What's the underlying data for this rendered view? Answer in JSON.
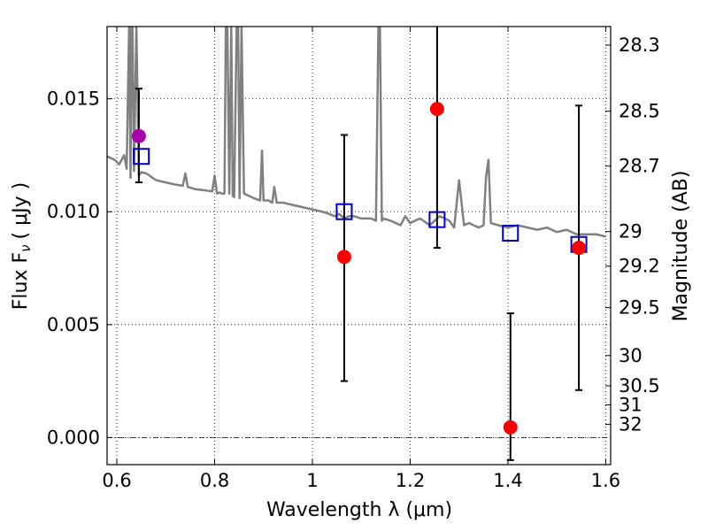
{
  "chart_data": {
    "type": "scatter",
    "title": "",
    "xlabel": "Wavelength  λ (μm)",
    "ylabel": "Flux  F",
    "ylabel_sub": "ν",
    "ylabel_unit": "( μJy )",
    "y2label": "Magnitude (AB)",
    "xlim": [
      0.58,
      1.61
    ],
    "ylim": [
      -0.0012,
      0.0182
    ],
    "x_ticks": [
      0.6,
      0.8,
      1.0,
      1.2,
      1.4,
      1.6
    ],
    "x_tick_labels": [
      "0.6",
      "0.8",
      "1",
      "1.2",
      "1.4",
      "1.6"
    ],
    "y_ticks": [
      0.0,
      0.005,
      0.01,
      0.015
    ],
    "y_tick_labels": [
      "0.000",
      "0.005",
      "0.010",
      "0.015"
    ],
    "y2_ticks": [
      {
        "label": "28.3",
        "flux": 0.01738
      },
      {
        "label": "28.5",
        "flux": 0.01445
      },
      {
        "label": "28.7",
        "flux": 0.01202
      },
      {
        "label": "29",
        "flux": 0.00912
      },
      {
        "label": "29.2",
        "flux": 0.00759
      },
      {
        "label": "29.5",
        "flux": 0.00575
      },
      {
        "label": "30",
        "flux": 0.00363
      },
      {
        "label": "30.5",
        "flux": 0.00229
      },
      {
        "label": "31",
        "flux": 0.00145
      },
      {
        "label": "32",
        "flux": 0.00058
      }
    ],
    "grid": true,
    "zero_line": true,
    "series": [
      {
        "kind": "spectrum",
        "color": "#808080",
        "x": [
          0.58,
          0.595,
          0.605,
          0.615,
          0.62,
          0.625,
          0.628,
          0.63,
          0.632,
          0.635,
          0.64,
          0.645,
          0.65,
          0.66,
          0.68,
          0.7,
          0.72,
          0.735,
          0.74,
          0.745,
          0.76,
          0.78,
          0.795,
          0.8,
          0.805,
          0.81,
          0.815,
          0.82,
          0.823,
          0.826,
          0.83,
          0.834,
          0.837,
          0.84,
          0.845,
          0.848,
          0.851,
          0.855,
          0.86,
          0.88,
          0.893,
          0.897,
          0.9,
          0.91,
          0.918,
          0.922,
          0.927,
          0.94,
          0.96,
          0.98,
          1.0,
          1.02,
          1.035,
          1.045,
          1.055,
          1.065,
          1.075,
          1.085,
          1.1,
          1.12,
          1.13,
          1.135,
          1.138,
          1.142,
          1.145,
          1.16,
          1.18,
          1.19,
          1.2,
          1.21,
          1.22,
          1.24,
          1.26,
          1.28,
          1.29,
          1.3,
          1.31,
          1.32,
          1.34,
          1.35,
          1.355,
          1.36,
          1.365,
          1.38,
          1.4,
          1.42,
          1.44,
          1.46,
          1.48,
          1.5,
          1.52,
          1.54,
          1.56,
          1.58,
          1.6
        ],
        "y": [
          0.01245,
          0.0123,
          0.0121,
          0.0125,
          0.0119,
          0.0182,
          0.0115,
          0.0182,
          0.0182,
          0.0118,
          0.0182,
          0.0116,
          0.01175,
          0.0117,
          0.0114,
          0.0113,
          0.0112,
          0.01115,
          0.0117,
          0.0111,
          0.011,
          0.01095,
          0.0109,
          0.0116,
          0.0108,
          0.01085,
          0.0108,
          0.0108,
          0.0182,
          0.0182,
          0.0108,
          0.0182,
          0.0107,
          0.01065,
          0.0182,
          0.0182,
          0.0106,
          0.0182,
          0.0108,
          0.0106,
          0.0105,
          0.0127,
          0.0105,
          0.0105,
          0.0104,
          0.0111,
          0.0104,
          0.0104,
          0.0103,
          0.0102,
          0.0101,
          0.01,
          0.0099,
          0.0098,
          0.0099,
          0.0097,
          0.0098,
          0.0098,
          0.0097,
          0.0097,
          0.0096,
          0.0182,
          0.0182,
          0.0096,
          0.0097,
          0.0096,
          0.0094,
          0.0098,
          0.0095,
          0.0096,
          0.0097,
          0.0094,
          0.0098,
          0.0096,
          0.0093,
          0.0114,
          0.0094,
          0.0095,
          0.0093,
          0.0094,
          0.0115,
          0.0123,
          0.0095,
          0.0094,
          0.0093,
          0.0094,
          0.0093,
          0.0092,
          0.0093,
          0.0091,
          0.0092,
          0.009,
          0.009,
          0.009,
          0.0089
        ]
      },
      {
        "kind": "model_photometry",
        "marker": "open-square",
        "color": "#0000cc",
        "x": [
          0.65,
          1.065,
          1.255,
          1.405,
          1.545
        ],
        "y": [
          0.01245,
          0.01,
          0.00965,
          0.00905,
          0.00855
        ]
      },
      {
        "kind": "observed_flux",
        "marker": "filled-circle",
        "color": "#ff0000",
        "x": [
          1.065,
          1.255,
          1.405,
          1.545
        ],
        "y": [
          0.008,
          0.01455,
          0.00045,
          0.0084
        ],
        "yerr_low": [
          0.0025,
          0.0084,
          -0.001,
          0.0021
        ],
        "yerr_high": [
          0.0134,
          0.019,
          0.0055,
          0.0147
        ]
      },
      {
        "kind": "observed_flux_optical",
        "marker": "filled-circle",
        "color": "#aa00aa",
        "x": [
          0.645
        ],
        "y": [
          0.01335
        ],
        "yerr_low": [
          0.0113
        ],
        "yerr_high": [
          0.01545
        ]
      }
    ]
  }
}
